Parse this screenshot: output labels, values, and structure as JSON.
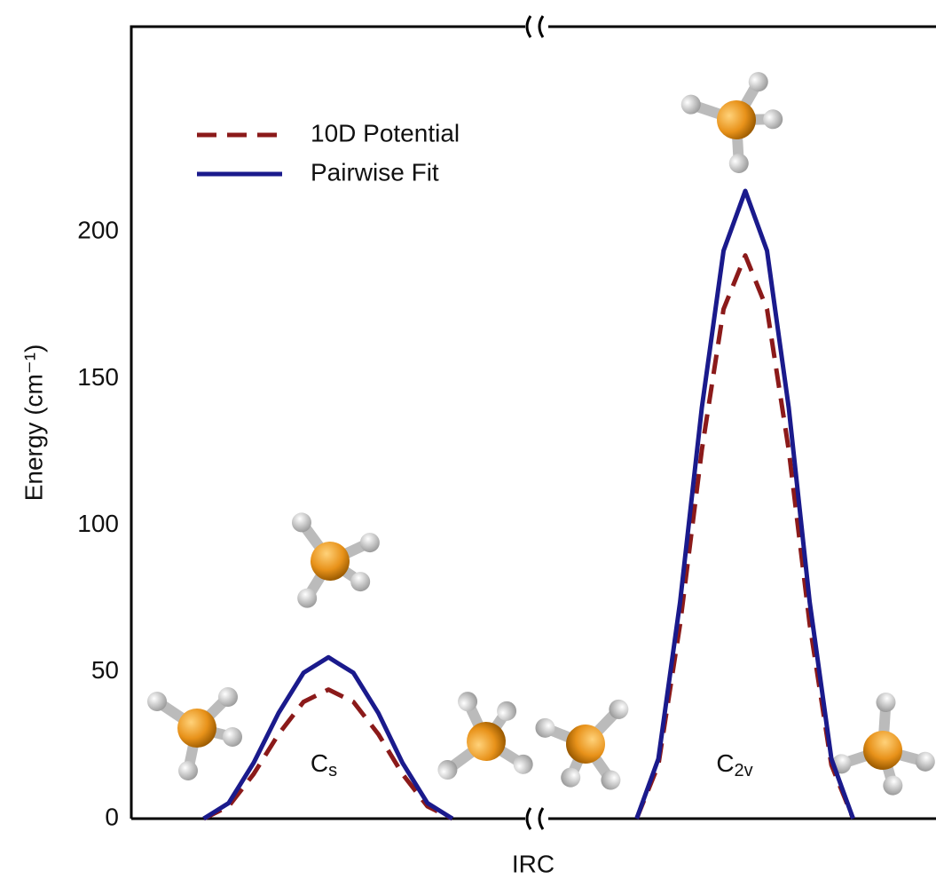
{
  "chart_data": {
    "type": "line",
    "y_label": "Energy (cm⁻¹)",
    "x_label": "IRC",
    "x": [
      9.0,
      12.1,
      15.2,
      18.3,
      21.4,
      24.5,
      27.6,
      30.7,
      33.7,
      36.8,
      39.9,
      50.0,
      62.8,
      65.5,
      68.2,
      70.9,
      73.6,
      76.3,
      79.0,
      81.7,
      84.3,
      87.0,
      89.7
    ],
    "xlim": [
      0,
      100
    ],
    "ylim": [
      0,
      270
    ],
    "yticks": [
      0,
      50,
      100,
      150,
      200
    ],
    "grid": false,
    "legend": "upper left",
    "series": [
      {
        "name": "10D Potential",
        "color": "#8b1a1a",
        "style": "dashed",
        "values": [
          0,
          4.2,
          15.2,
          28.8,
          39.8,
          44,
          39.8,
          28.8,
          15.2,
          4.2,
          0,
          null,
          0,
          18.3,
          66.3,
          125.7,
          173.7,
          192,
          173.7,
          125.7,
          66.3,
          18.3,
          0
        ]
      },
      {
        "name": "Pairwise Fit",
        "color": "#1a1a8c",
        "style": "solid",
        "values": [
          0,
          5.3,
          19.0,
          36.0,
          49.7,
          55,
          49.7,
          36.0,
          19.0,
          5.3,
          0,
          null,
          0,
          20.4,
          73.9,
          140.1,
          193.6,
          214,
          193.6,
          140.1,
          73.9,
          20.4,
          0
        ]
      }
    ],
    "annotations": [
      {
        "text": "C",
        "sub": "s"
      },
      {
        "text": "C",
        "sub": "2v"
      }
    ]
  }
}
